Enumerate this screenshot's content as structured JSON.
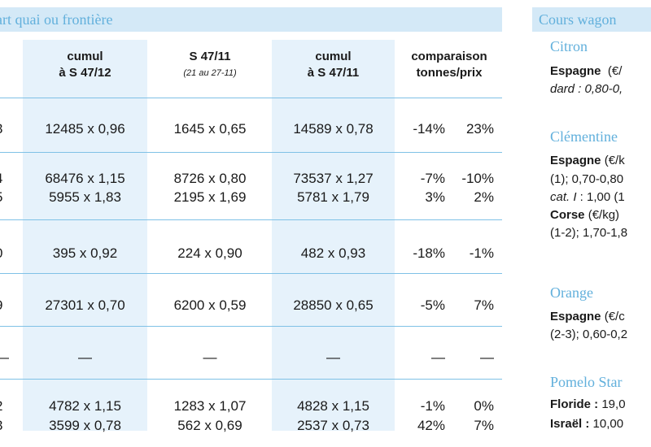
{
  "left_banner": "part quai ou frontière",
  "right_banner": "Cours wagon",
  "header": {
    "partial_unit": ")",
    "col1": {
      "line1": "cumul",
      "line2": "à S 47/12"
    },
    "col2": {
      "line1": "S 47/11",
      "line2": "(21 au 27-11)"
    },
    "col3": {
      "line1": "cumul",
      "line2": "à S 47/11"
    },
    "col4": {
      "line1": "comparaison",
      "line2": "tonnes/prix"
    }
  },
  "rows": [
    {
      "partial": "3",
      "cumul12": "12485 x 0,96",
      "s4711": "1645 x 0,65",
      "cumul11": "14589 x 0,78",
      "cmp_t": "-14%",
      "cmp_p": "23%"
    },
    {
      "partial": "4",
      "cumul12": "68476 x 1,15",
      "s4711": "8726 x 0,80",
      "cumul11": "73537 x 1,27",
      "cmp_t": "-7%",
      "cmp_p": "-10%"
    },
    {
      "partial": "5",
      "cumul12": "5955 x 1,83",
      "s4711": "2195 x 1,69",
      "cumul11": "5781 x 1,79",
      "cmp_t": "3%",
      "cmp_p": "2%"
    },
    {
      "partial": "0",
      "cumul12": "395 x 0,92",
      "s4711": "224 x 0,90",
      "cumul11": "482 x 0,93",
      "cmp_t": "-18%",
      "cmp_p": "-1%"
    },
    {
      "partial": "9",
      "cumul12": "27301 x 0,70",
      "s4711": "6200 x 0,59",
      "cumul11": "28850 x 0,65",
      "cmp_t": "-5%",
      "cmp_p": "7%"
    },
    {
      "partial": "—",
      "cumul12": "—",
      "s4711": "—",
      "cumul11": "—",
      "cmp_t": "—",
      "cmp_p": "—"
    },
    {
      "partial": "2",
      "cumul12": "4782 x 1,15",
      "s4711": "1283 x 1,07",
      "cumul11": "4828 x 1,15",
      "cmp_t": "-1%",
      "cmp_p": "0%"
    },
    {
      "partial": "3",
      "cumul12": "3599 x 0,78",
      "s4711": "562 x 0,69",
      "cumul11": "2537 x 0,73",
      "cmp_t": "42%",
      "cmp_p": "7%"
    }
  ],
  "right": {
    "citron": {
      "title": "Citron",
      "l1_b": "Espagne",
      "l1": "(€/",
      "l2": "dard : 0,80-0,"
    },
    "clementine": {
      "title": "Clémentine",
      "l1_b": "Espagne",
      "l1": "(€/k",
      "l2": "(1); 0,70-0,80",
      "l3_i": "cat. I",
      "l3": " : 1,00 (1",
      "l4_b": "Corse",
      "l4": " (€/kg)",
      "l5": "(1-2); 1,70-1,8"
    },
    "orange": {
      "title": "Orange",
      "l1_b": "Espagne",
      "l1": " (€/c",
      "l2": "(2-3); 0,60-0,2"
    },
    "pomelo": {
      "title": "Pomelo Star",
      "l1_b": "Floride :",
      "l1": " 19,0",
      "l2_b": "Israël :",
      "l2": " 10,00"
    }
  }
}
